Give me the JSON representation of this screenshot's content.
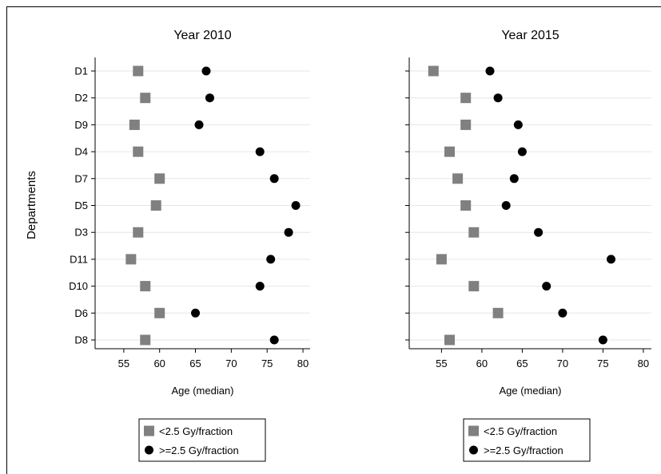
{
  "ylabel": "Departments",
  "legend": {
    "entries": [
      {
        "label": "<2.5 Gy/fraction",
        "marker": "square",
        "color": "#808080"
      },
      {
        "label": ">=2.5 Gy/fraction",
        "marker": "circle",
        "color": "#000000"
      }
    ]
  },
  "chart_data": [
    {
      "type": "scatter",
      "title": "Year 2010",
      "xlabel": "Age (median)",
      "ylabel": "Departments",
      "xlim": [
        51,
        81
      ],
      "xticks": [
        55,
        60,
        65,
        70,
        75,
        80
      ],
      "categories": [
        "D1",
        "D2",
        "D9",
        "D4",
        "D7",
        "D5",
        "D3",
        "D11",
        "D10",
        "D6",
        "D8"
      ],
      "grid": "horizontal",
      "legend_position": "bottom",
      "series": [
        {
          "name": "<2.5 Gy/fraction",
          "marker": "square",
          "color": "#808080",
          "values": [
            57,
            58,
            56.5,
            57,
            60,
            59.5,
            57,
            56,
            58,
            60,
            58
          ]
        },
        {
          "name": ">=2.5 Gy/fraction",
          "marker": "circle",
          "color": "#000000",
          "values": [
            66.5,
            67,
            65.5,
            74,
            76,
            79,
            78,
            75.5,
            74,
            65,
            76
          ]
        }
      ]
    },
    {
      "type": "scatter",
      "title": "Year 2015",
      "xlabel": "Age (median)",
      "ylabel": "Departments",
      "xlim": [
        51,
        81
      ],
      "xticks": [
        55,
        60,
        65,
        70,
        75,
        80
      ],
      "categories": [
        "D1",
        "D2",
        "D9",
        "D4",
        "D7",
        "D5",
        "D3",
        "D11",
        "D10",
        "D6",
        "D8"
      ],
      "grid": "horizontal",
      "legend_position": "bottom",
      "series": [
        {
          "name": "<2.5 Gy/fraction",
          "marker": "square",
          "color": "#808080",
          "values": [
            54,
            58,
            58,
            56,
            57,
            58,
            59,
            55,
            59,
            62,
            56
          ]
        },
        {
          "name": ">=2.5 Gy/fraction",
          "marker": "circle",
          "color": "#000000",
          "values": [
            61,
            62,
            64.5,
            65,
            64,
            63,
            67,
            76,
            68,
            70,
            75
          ]
        }
      ]
    }
  ]
}
